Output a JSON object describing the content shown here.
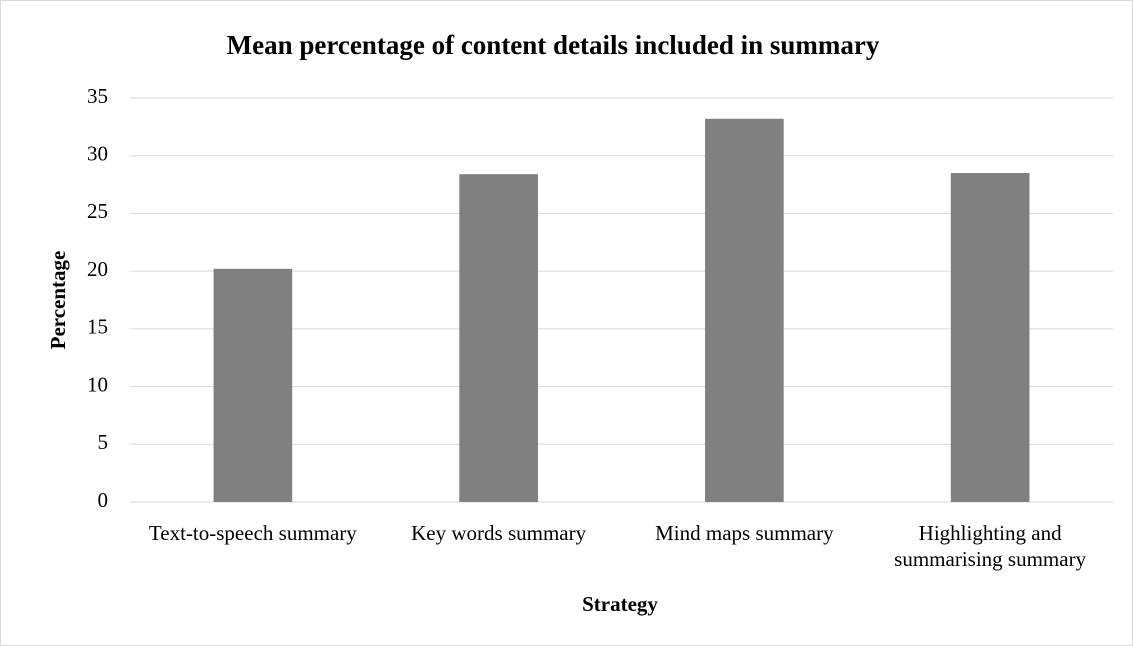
{
  "chart_data": {
    "type": "bar",
    "title": "Mean percentage of content details included in summary",
    "categories": [
      "Text-to-speech summary",
      "Key words summary",
      "Mind maps summary",
      "Highlighting and summarising summary"
    ],
    "values": [
      20.2,
      28.4,
      33.2,
      28.5
    ],
    "color": "#808080",
    "xlabel": "Strategy",
    "ylabel": "Percentage",
    "ylim": [
      0,
      35
    ],
    "yticks": [
      0,
      5,
      10,
      15,
      20,
      25,
      30,
      35
    ],
    "grid": true
  }
}
